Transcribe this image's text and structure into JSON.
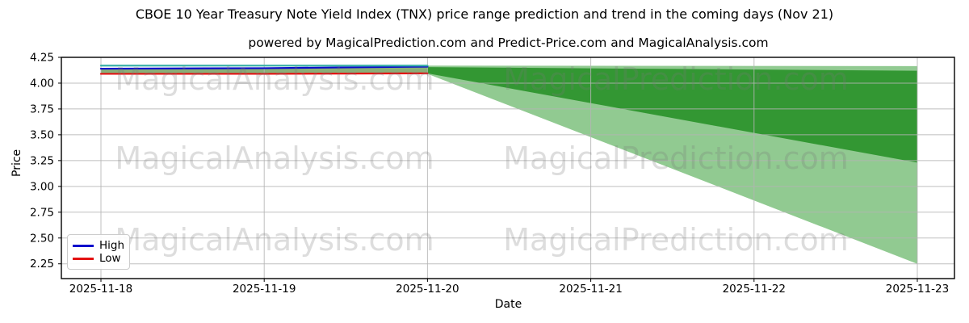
{
  "title": "CBOE 10 Year Treasury Note Yield Index (TNX) price range prediction and trend in the coming days (Nov 21)",
  "subtitle": "powered by MagicalPrediction.com and Predict-Price.com and MagicalAnalysis.com",
  "watermarks": {
    "left_text": "MagicalAnalysis.com",
    "right_text": "MagicalPrediction.com"
  },
  "chart_data": {
    "type": "line",
    "title": "CBOE 10 Year Treasury Note Yield Index (TNX) price range prediction and trend in the coming days (Nov 21)",
    "xlabel": "Date",
    "ylabel": "Price",
    "categories": [
      "2025-11-18",
      "2025-11-19",
      "2025-11-20",
      "2025-11-21",
      "2025-11-22",
      "2025-11-23"
    ],
    "ytick_labels": [
      "2.25",
      "2.50",
      "2.75",
      "3.00",
      "3.25",
      "3.50",
      "3.75",
      "4.00",
      "4.25"
    ],
    "yticks": [
      2.25,
      2.5,
      2.75,
      3.0,
      3.25,
      3.5,
      3.75,
      4.0,
      4.25
    ],
    "ylim": [
      2.107,
      4.25
    ],
    "grid": true,
    "legend_position": "lower-left",
    "colors": {
      "high_line": "#0a0acc",
      "low_line": "#e31111",
      "guide_line": "#3ab0a8",
      "historical_band": "#3a7a1e",
      "outer_band": "#2f9b2f",
      "inner_band": "#259025",
      "gridline": "#b4b4b4"
    },
    "series": [
      {
        "name": "High",
        "color": "#0a0acc",
        "x": [
          0,
          1,
          2
        ],
        "values": [
          4.14,
          4.145,
          4.16
        ]
      },
      {
        "name": "Low",
        "color": "#e31111",
        "x": [
          0,
          1,
          2
        ],
        "values": [
          4.09,
          4.09,
          4.095
        ]
      },
      {
        "name": "upper-guide",
        "color": "#3ab0a8",
        "x": [
          0,
          1,
          2
        ],
        "values": [
          4.17,
          4.17,
          4.17
        ]
      }
    ],
    "bands": [
      {
        "name": "historical-range",
        "x": [
          0,
          1,
          2
        ],
        "top": [
          4.14,
          4.145,
          4.16
        ],
        "bottom": [
          4.09,
          4.09,
          4.095
        ],
        "color": "#3a7a1e",
        "opacity": 0.6
      },
      {
        "name": "prediction-outer",
        "x": [
          2,
          5
        ],
        "top": [
          4.17,
          4.165
        ],
        "bottom": [
          4.09,
          2.25
        ],
        "color": "#2f9b2f",
        "opacity": 0.53
      },
      {
        "name": "prediction-inner",
        "x": [
          2,
          5
        ],
        "top": [
          4.155,
          4.12
        ],
        "bottom": [
          4.095,
          3.23
        ],
        "color": "#259025",
        "opacity": 0.88
      }
    ],
    "legend": [
      {
        "label": "High",
        "color": "#0a0acc"
      },
      {
        "label": "Low",
        "color": "#e31111"
      }
    ]
  }
}
